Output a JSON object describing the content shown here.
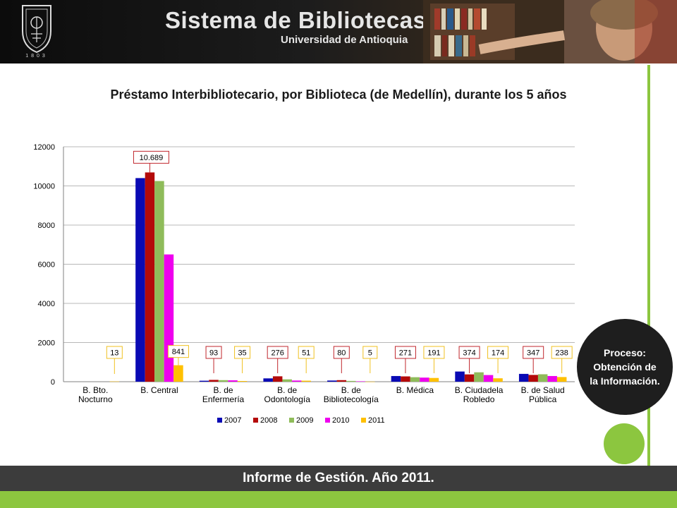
{
  "header": {
    "title": "Sistema de Bibliotecas",
    "subtitle": "Universidad de Antioquia",
    "seal_year": "1803"
  },
  "process_badge": {
    "lines": [
      "Proceso:",
      "Obtención de",
      "la Información."
    ]
  },
  "footer": {
    "text": "Informe de Gestión. Año 2011."
  },
  "colors": {
    "green_accent": "#8cc63f",
    "dark": "#1e1e1e",
    "footer_bar": "#3c3c3c",
    "callout_red": "#c0272d",
    "callout_yellow": "#f0c020"
  },
  "chart_data": {
    "type": "bar",
    "title": "Préstamo Interbibliotecario, por Biblioteca (de Medellín), durante los 5 años",
    "categories": [
      [
        "B. Bto.",
        "Nocturno"
      ],
      [
        "B. Central"
      ],
      [
        "B. de",
        "Enfermería"
      ],
      [
        "B. de",
        "Odontología"
      ],
      [
        "B. de",
        "Bibliotecología"
      ],
      [
        "B. Médica"
      ],
      [
        "B. Ciudadela",
        "Robledo"
      ],
      [
        "B. de Salud",
        "Pública"
      ]
    ],
    "series": [
      {
        "name": "2007",
        "color": "#0a0ab4",
        "values": [
          0,
          10400,
          50,
          170,
          60,
          290,
          520,
          400
        ]
      },
      {
        "name": "2008",
        "color": "#b40a0a",
        "values": [
          0,
          10689,
          93,
          276,
          80,
          271,
          374,
          347
        ]
      },
      {
        "name": "2009",
        "color": "#8fbc5a",
        "values": [
          0,
          10250,
          80,
          120,
          40,
          230,
          480,
          380
        ]
      },
      {
        "name": "2010",
        "color": "#ee00ee",
        "values": [
          0,
          6500,
          70,
          60,
          20,
          210,
          340,
          290
        ]
      },
      {
        "name": "2011",
        "color": "#ffc000",
        "values": [
          13,
          841,
          35,
          51,
          5,
          191,
          174,
          238
        ]
      }
    ],
    "yticks": [
      0,
      2000,
      4000,
      6000,
      8000,
      10000,
      12000
    ],
    "ylim": [
      0,
      12000
    ],
    "gridlines": true,
    "legend": "bottom",
    "callouts_red": [
      {
        "category": 1,
        "label": "10.689"
      },
      {
        "category": 2,
        "label": "93"
      },
      {
        "category": 3,
        "label": "276"
      },
      {
        "category": 4,
        "label": "80"
      },
      {
        "category": 5,
        "label": "271"
      },
      {
        "category": 6,
        "label": "374"
      },
      {
        "category": 7,
        "label": "347"
      }
    ],
    "callouts_yellow": [
      {
        "category": 0,
        "label": "13"
      },
      {
        "category": 1,
        "label": "841"
      },
      {
        "category": 2,
        "label": "35"
      },
      {
        "category": 3,
        "label": "51"
      },
      {
        "category": 4,
        "label": "5"
      },
      {
        "category": 5,
        "label": "191"
      },
      {
        "category": 6,
        "label": "174"
      },
      {
        "category": 7,
        "label": "238"
      }
    ]
  }
}
